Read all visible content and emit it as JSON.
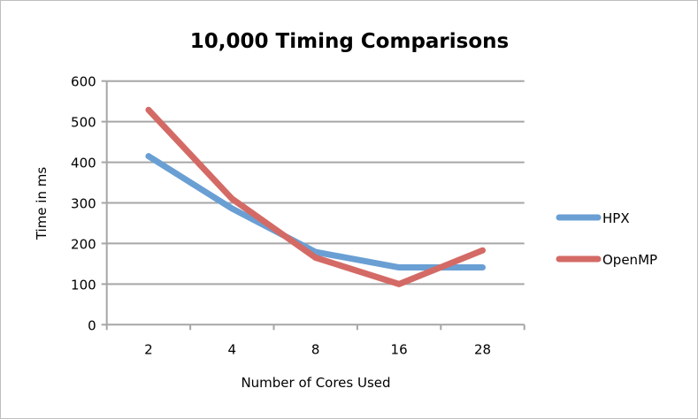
{
  "chart_data": {
    "type": "line",
    "title": "10,000 Timing Comparisons",
    "xlabel": "Number of Cores Used",
    "ylabel": "Time in ms",
    "categories": [
      "2",
      "4",
      "8",
      "16",
      "28"
    ],
    "ylim": [
      0,
      600
    ],
    "yticks": [
      "0",
      "100",
      "200",
      "300",
      "400",
      "500",
      "600"
    ],
    "grid": true,
    "legend": "right",
    "series": [
      {
        "name": "HPX",
        "color": "#6a9fd4",
        "values": [
          415,
          286,
          179,
          141,
          141
        ]
      },
      {
        "name": "OpenMP",
        "color": "#d46a65",
        "values": [
          529,
          310,
          165,
          100,
          183
        ]
      }
    ]
  }
}
